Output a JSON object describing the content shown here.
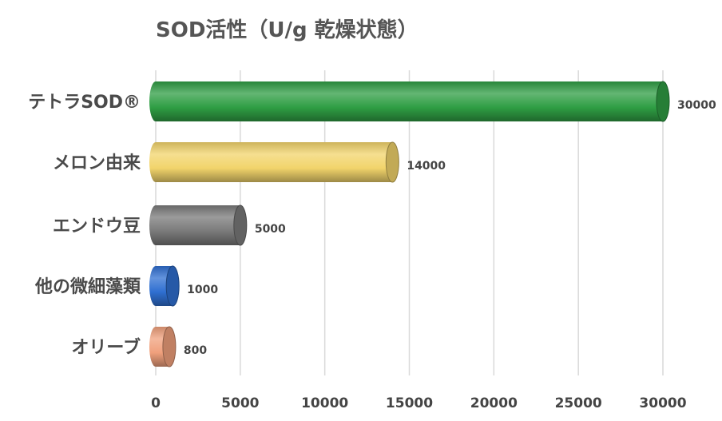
{
  "chart_data": {
    "type": "bar",
    "orientation": "horizontal",
    "style": "cylinder",
    "title": "SOD活性（U/g 乾燥状態）",
    "categories": [
      "テトラSOD®",
      "メロン由来",
      "エンドウ豆",
      "他の微細藻類",
      "オリーブ"
    ],
    "values": [
      30000,
      14000,
      5000,
      1000,
      800
    ],
    "data_labels": [
      "30000",
      "14000",
      "5000",
      "1000",
      "800"
    ],
    "bar_colors": [
      "#2f9e44",
      "#f2d46b",
      "#7a7a7a",
      "#2f6fd1",
      "#f0a07c"
    ],
    "xlim": [
      0,
      30000
    ],
    "x_ticks": [
      "0",
      "5000",
      "10000",
      "15000",
      "20000",
      "25000",
      "30000"
    ],
    "grid": true,
    "xlabel": "",
    "ylabel": ""
  }
}
